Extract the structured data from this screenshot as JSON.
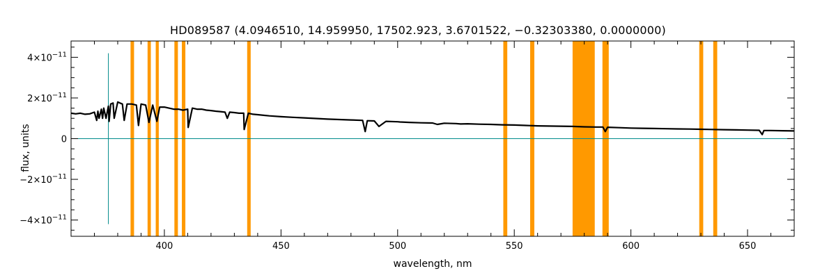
{
  "chart_data": {
    "type": "line",
    "title": "HD089587    (4.0946510, 14.959950, 17502.923, 3.6701522, −0.32303380, 0.0000000)",
    "xlabel": "wavelength, nm",
    "ylabel": "flux, units",
    "xlim": [
      360,
      670
    ],
    "ylim": [
      -4.8e-11,
      4.8e-11
    ],
    "x_ticks": [
      400,
      450,
      500,
      550,
      600,
      650
    ],
    "y_ticks": [
      {
        "value": 4e-11,
        "mantissa": "4×10",
        "exp": "−11"
      },
      {
        "value": 2e-11,
        "mantissa": "2×10",
        "exp": "−11"
      },
      {
        "value": 0,
        "mantissa": "0",
        "exp": ""
      },
      {
        "value": -2e-11,
        "mantissa": "−2×10",
        "exp": "−11"
      },
      {
        "value": -4e-11,
        "mantissa": "−4×10",
        "exp": "−11"
      }
    ],
    "colors": {
      "spectrum": "#000000",
      "mask": "#ff9900",
      "reference": "#008b8b"
    },
    "zero_line": 0,
    "reference_line_x": 376,
    "masked_regions": [
      [
        385.5,
        387.0
      ],
      [
        392.8,
        394.2
      ],
      [
        396.3,
        397.6
      ],
      [
        404.3,
        405.8
      ],
      [
        407.5,
        409.0
      ],
      [
        435.5,
        437.0
      ],
      [
        545.3,
        547.0
      ],
      [
        556.8,
        558.6
      ],
      [
        575.0,
        584.5
      ],
      [
        587.8,
        590.5
      ],
      [
        629.3,
        631.0
      ],
      [
        635.3,
        637.0
      ]
    ],
    "series": [
      {
        "x": [
          360,
          362,
          364,
          366,
          368,
          370,
          371,
          371.5,
          372,
          373,
          373.5,
          374,
          375,
          376,
          376.3,
          377,
          378,
          378.5,
          380,
          381,
          382,
          382.8,
          384,
          386,
          388,
          388.9,
          390,
          392,
          393.4,
          395,
          396.8,
          398,
          400,
          402,
          404,
          406,
          408,
          410,
          410.2,
          412,
          414,
          416,
          418,
          420,
          422,
          424,
          426,
          427,
          428,
          430,
          432,
          434,
          434.2,
          436,
          438,
          440,
          445,
          450,
          455,
          460,
          465,
          470,
          475,
          480,
          485,
          486.1,
          487,
          490,
          492,
          495,
          500,
          501,
          505,
          510,
          515,
          517,
          520,
          525,
          527,
          530,
          535,
          540,
          545,
          550,
          555,
          560,
          565,
          570,
          575,
          580,
          585,
          588,
          589,
          590,
          595,
          600,
          605,
          610,
          615,
          620,
          625,
          630,
          635,
          640,
          645,
          650,
          655,
          656.3,
          657,
          660,
          665,
          670
        ],
        "y": [
          1.25e-11,
          1.22e-11,
          1.25e-11,
          1.2e-11,
          1.22e-11,
          1.3e-11,
          9e-12,
          1.35e-11,
          1e-11,
          1.45e-11,
          1e-11,
          1.5e-11,
          1e-11,
          1.6e-11,
          8.5e-12,
          1.7e-11,
          1.75e-11,
          1e-11,
          1.8e-11,
          1.75e-11,
          1.7e-11,
          9e-12,
          1.7e-11,
          1.7e-11,
          1.65e-11,
          6.5e-12,
          1.7e-11,
          1.65e-11,
          8e-12,
          1.65e-11,
          8.5e-12,
          1.55e-11,
          1.55e-11,
          1.5e-11,
          1.45e-11,
          1.45e-11,
          1.4e-11,
          1.45e-11,
          5.5e-12,
          1.5e-11,
          1.45e-11,
          1.45e-11,
          1.4e-11,
          1.38e-11,
          1.35e-11,
          1.33e-11,
          1.3e-11,
          1e-11,
          1.3e-11,
          1.28e-11,
          1.25e-11,
          1.25e-11,
          4.5e-12,
          1.25e-11,
          1.2e-11,
          1.18e-11,
          1.12e-11,
          1.08e-11,
          1.05e-11,
          1.02e-11,
          9.9e-12,
          9.6e-12,
          9.4e-12,
          9.2e-12,
          9e-12,
          3.5e-12,
          8.8e-12,
          8.7e-12,
          6e-12,
          8.5e-12,
          8.3e-12,
          8.2e-12,
          8e-12,
          7.8e-12,
          7.7e-12,
          7e-12,
          7.6e-12,
          7.4e-12,
          7.2e-12,
          7.3e-12,
          7.1e-12,
          7e-12,
          6.8e-12,
          6.7e-12,
          6.5e-12,
          6.3e-12,
          6.2e-12,
          6.1e-12,
          6e-12,
          5.8e-12,
          5.7e-12,
          5.7e-12,
          3.5e-12,
          5.6e-12,
          5.4e-12,
          5.2e-12,
          5.1e-12,
          5e-12,
          4.9e-12,
          4.8e-12,
          4.7e-12,
          4.6e-12,
          4.5e-12,
          4.4e-12,
          4.3e-12,
          4.2e-12,
          4.1e-12,
          2e-12,
          4e-12,
          4e-12,
          3.9e-12,
          3.8e-12
        ]
      }
    ]
  }
}
